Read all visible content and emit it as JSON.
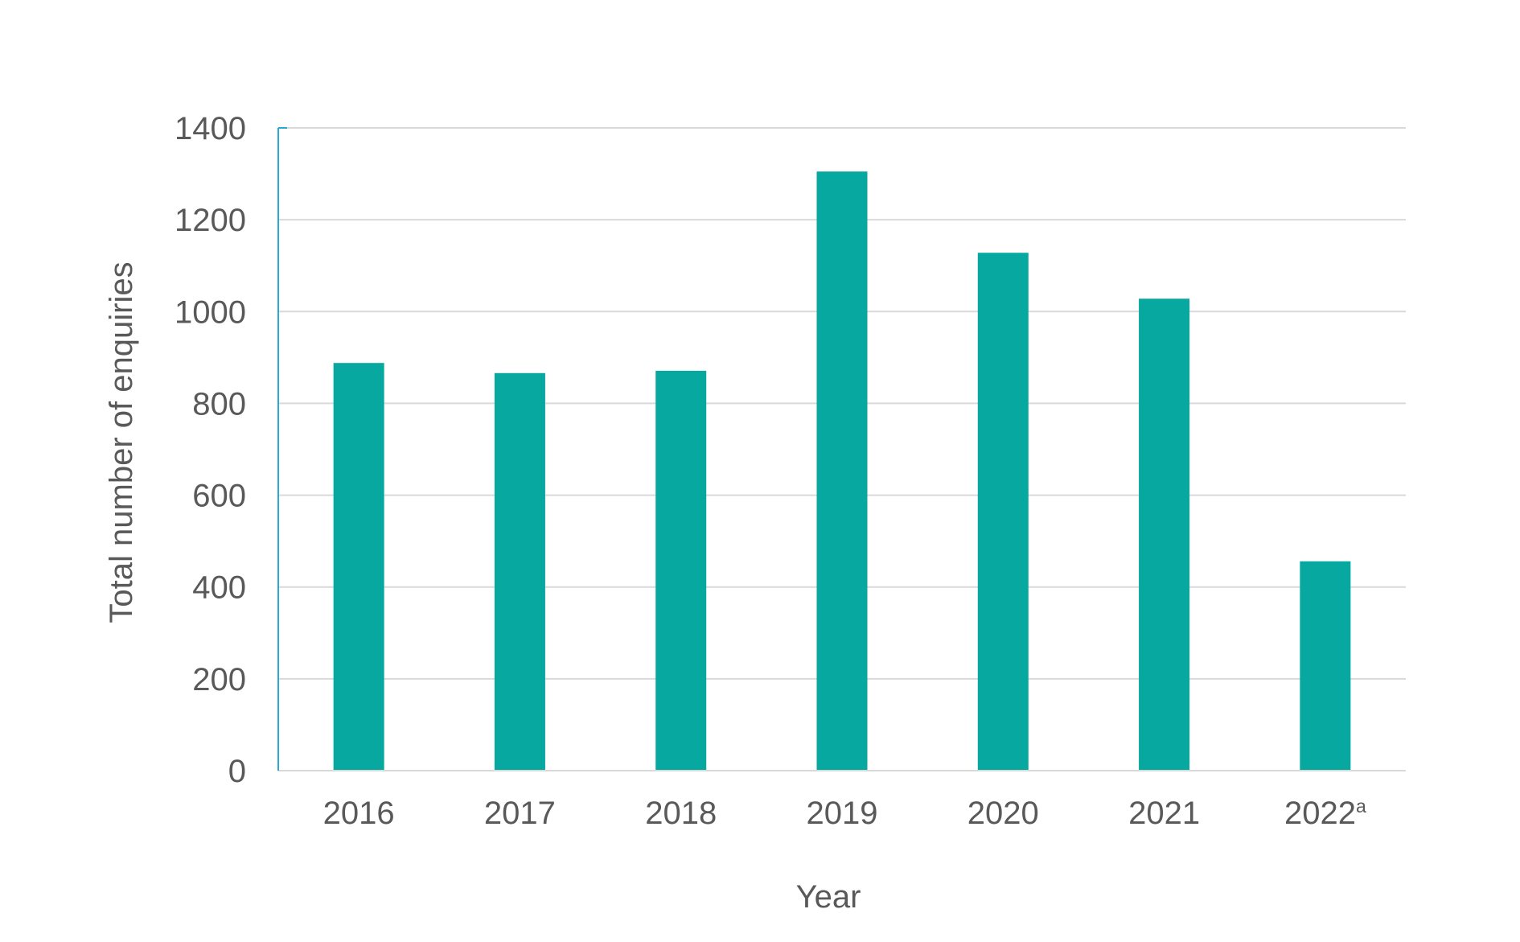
{
  "chart_data": {
    "type": "bar",
    "title": "",
    "xlabel": "Year",
    "ylabel": "Total number of enquiries",
    "categories": [
      {
        "label": "2016",
        "sup": ""
      },
      {
        "label": "2017",
        "sup": ""
      },
      {
        "label": "2018",
        "sup": ""
      },
      {
        "label": "2019",
        "sup": ""
      },
      {
        "label": "2020",
        "sup": ""
      },
      {
        "label": "2021",
        "sup": ""
      },
      {
        "label": "2022",
        "sup": "a"
      }
    ],
    "values": [
      888,
      866,
      871,
      1305,
      1128,
      1028,
      456
    ],
    "ylim": [
      0,
      1400
    ],
    "yticks": [
      0,
      200,
      400,
      600,
      800,
      1000,
      1200,
      1400
    ],
    "grid": true,
    "legend": "none",
    "colors": {
      "bar": "#07A8A0",
      "grid": "#D9D9D9",
      "axis": "#29A9D5",
      "text": "#595959"
    }
  }
}
